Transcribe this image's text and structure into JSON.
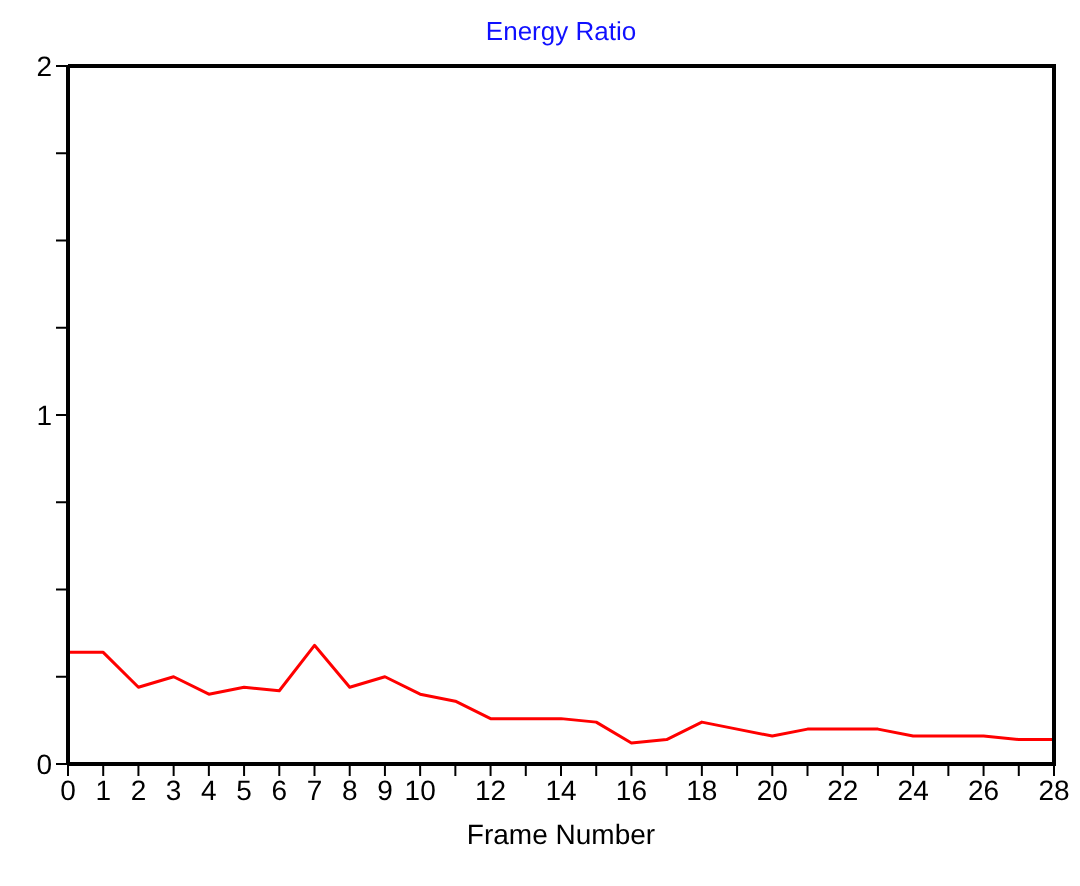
{
  "chart_data": {
    "type": "line",
    "title": "Energy Ratio",
    "xlabel": "Frame Number",
    "x": [
      0,
      1,
      2,
      3,
      4,
      5,
      6,
      7,
      8,
      9,
      10,
      11,
      12,
      13,
      14,
      15,
      16,
      17,
      18,
      19,
      20,
      21,
      22,
      23,
      24,
      25,
      26,
      27,
      28
    ],
    "series": [
      {
        "color": "#ff0000",
        "values": [
          0.32,
          0.32,
          0.22,
          0.25,
          0.2,
          0.22,
          0.21,
          0.34,
          0.22,
          0.25,
          0.2,
          0.18,
          0.13,
          0.13,
          0.13,
          0.12,
          0.06,
          0.07,
          0.12,
          0.1,
          0.08,
          0.1,
          0.1,
          0.1,
          0.08,
          0.08,
          0.08,
          0.07,
          0.07
        ]
      }
    ],
    "xlim": [
      0,
      28
    ],
    "xticks": [
      0,
      1,
      2,
      3,
      4,
      5,
      6,
      7,
      8,
      9,
      10,
      {
        "value": 11,
        "label": null
      },
      12,
      {
        "value": 13,
        "label": null
      },
      14,
      {
        "value": 15,
        "label": null
      },
      16,
      {
        "value": 17,
        "label": null
      },
      18,
      {
        "value": 19,
        "label": null
      },
      20,
      {
        "value": 21,
        "label": null
      },
      22,
      {
        "value": 23,
        "label": null
      },
      24,
      {
        "value": 25,
        "label": null
      },
      26,
      {
        "value": 27,
        "label": null
      },
      28
    ],
    "ylim": [
      0,
      2
    ],
    "yticks": [
      0,
      {
        "value": 0.25,
        "label": null
      },
      {
        "value": 0.5,
        "label": null
      },
      {
        "value": 0.75,
        "label": null
      },
      1,
      {
        "value": 1.25,
        "label": null
      },
      {
        "value": 1.5,
        "label": null
      },
      {
        "value": 1.75,
        "label": null
      },
      2
    ],
    "grid": false,
    "legend": false,
    "marker": "none",
    "line_style": "solid"
  }
}
